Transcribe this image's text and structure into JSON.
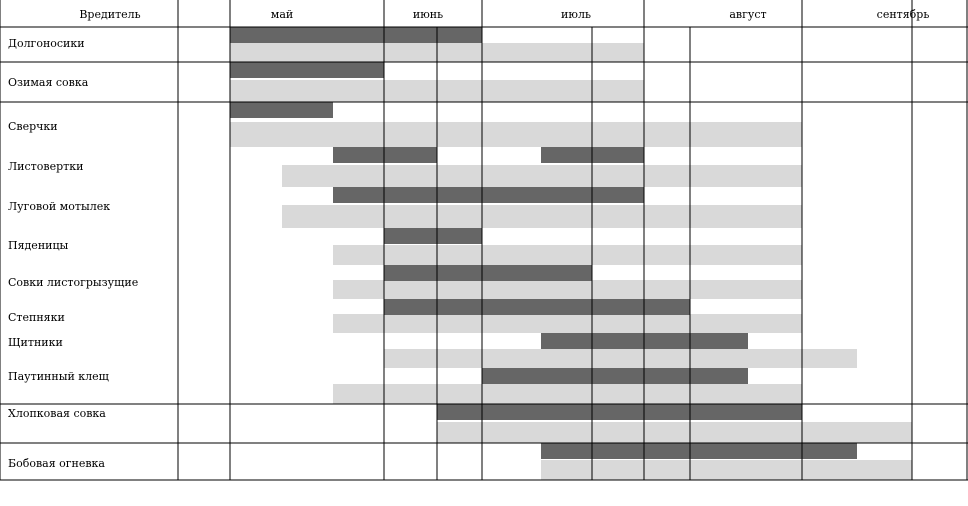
{
  "chart_data": {
    "type": "gantt",
    "header": {
      "pest_column": "Вредитель",
      "months": [
        "май",
        "июнь",
        "июль",
        "август",
        "сентябрь"
      ]
    },
    "rows": [
      {
        "label": "Долгоносики",
        "light": [
          [
            230,
            482
          ],
          [
            482,
            644
          ]
        ],
        "dark": [
          [
            230,
            482
          ]
        ]
      },
      {
        "label": "Озимая совка",
        "light": [
          [
            230,
            384
          ],
          [
            384,
            482
          ],
          [
            482,
            644
          ]
        ],
        "dark": [
          [
            230,
            384
          ]
        ]
      },
      {
        "label": "Сверчки",
        "light": [
          [
            230,
            802
          ]
        ],
        "dark": [
          [
            230,
            333
          ]
        ]
      },
      {
        "label": "Листовертки",
        "light": [
          [
            282,
            802
          ]
        ],
        "dark": [
          [
            333,
            437
          ],
          [
            541,
            644
          ]
        ]
      },
      {
        "label": "Луговой мотылек",
        "light": [
          [
            282,
            802
          ]
        ],
        "dark": [
          [
            333,
            644
          ]
        ]
      },
      {
        "label": "Пяденицы",
        "light": [
          [
            333,
            802
          ]
        ],
        "dark": [
          [
            384,
            482
          ]
        ]
      },
      {
        "label": "Совки листогрызущие",
        "light": [
          [
            333,
            802
          ]
        ],
        "dark": [
          [
            384,
            592
          ]
        ]
      },
      {
        "label": "Степняки",
        "light": [
          [
            333,
            802
          ]
        ],
        "dark": [
          [
            384,
            690
          ]
        ]
      },
      {
        "label": "Щитники",
        "light": [
          [
            384,
            857
          ]
        ],
        "dark": [
          [
            541,
            748
          ]
        ]
      },
      {
        "label": "Паутинный клещ",
        "light": [
          [
            333,
            802
          ]
        ],
        "dark": [
          [
            482,
            748
          ]
        ]
      },
      {
        "label": "Хлопковая совка",
        "light": [
          [
            437,
            912
          ]
        ],
        "dark": [
          [
            437,
            802
          ]
        ]
      },
      {
        "label": "Бобовая огневка",
        "light": [
          [
            541,
            912
          ]
        ],
        "dark": [
          [
            541,
            857
          ]
        ]
      }
    ]
  },
  "colors": {
    "light": "#d9d9d9",
    "dark": "#666666",
    "line": "#000000"
  }
}
